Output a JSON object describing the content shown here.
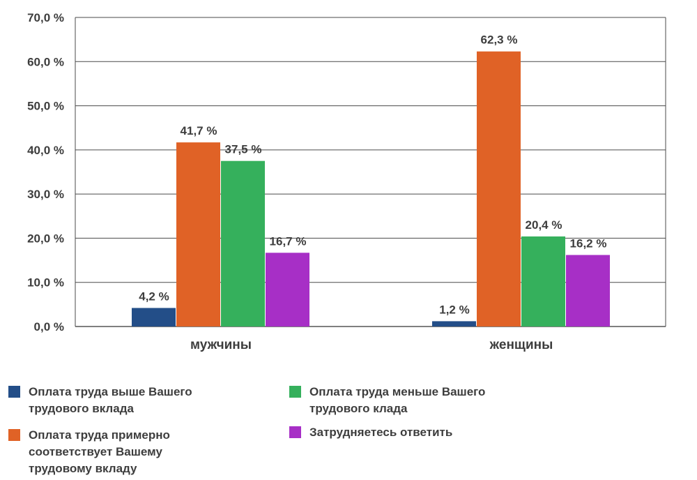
{
  "chart_data": {
    "type": "bar",
    "categories": [
      "мужчины",
      "женщины"
    ],
    "series": [
      {
        "name": "Оплата труда выше Вашего трудового вклада",
        "values": [
          4.2,
          1.2
        ],
        "labels": [
          "4,2 %",
          "1,2 %"
        ],
        "color": "#234e88"
      },
      {
        "name": "Оплата труда примерно соответствует Вашему трудовому вкладу",
        "values": [
          41.7,
          62.3
        ],
        "labels": [
          "41,7 %",
          "62,3 %"
        ],
        "color": "#e06226"
      },
      {
        "name": "Оплата труда меньше Вашего трудового клада",
        "values": [
          37.5,
          20.4
        ],
        "labels": [
          "37,5 %",
          "20,4 %"
        ],
        "color": "#35b05c"
      },
      {
        "name": "Затрудняетесь ответить",
        "values": [
          16.7,
          16.2
        ],
        "labels": [
          "16,7 %",
          "16,2 %"
        ],
        "color": "#a72fc6"
      }
    ],
    "yticks": [
      "0,0 %",
      "10,0 %",
      "20,0 %",
      "30,0 %",
      "40,0 %",
      "50,0 %",
      "60,0 %",
      "70,0 %"
    ],
    "ylim": [
      0,
      70
    ],
    "grid": true
  },
  "legend": [
    {
      "text": "Оплата труда выше Вашего\nтрудового вклада",
      "color": "#234e88"
    },
    {
      "text": "Оплата труда меньше Вашего\nтрудового клада",
      "color": "#35b05c"
    },
    {
      "text": "Оплата труда примерно\nсоответствует Вашему\nтрудовому вкладу",
      "color": "#e06226"
    },
    {
      "text": "Затрудняетесь ответить",
      "color": "#a72fc6"
    }
  ]
}
